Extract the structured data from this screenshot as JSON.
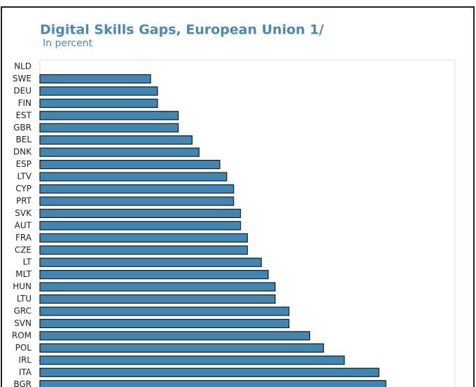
{
  "chart_data": {
    "type": "barh",
    "title": "Digital Skills Gaps, European Union 1/",
    "subtitle": "In percent",
    "categories": [
      "NLD",
      "SWE",
      "DEU",
      "FIN",
      "EST",
      "GBR",
      "BEL",
      "DNK",
      "ESP",
      "LTV",
      "CYP",
      "PRT",
      "SVK",
      "AUT",
      "FRA",
      "CZE",
      "LT",
      "MLT",
      "HUN",
      "LTU",
      "GRC",
      "SVN",
      "ROM",
      "POL",
      "IRL",
      "ITA",
      "BGR"
    ],
    "values": [
      0,
      16,
      17,
      17,
      20,
      20,
      22,
      23,
      26,
      27,
      28,
      28,
      29,
      29,
      30,
      30,
      32,
      33,
      34,
      34,
      36,
      36,
      39,
      41,
      44,
      49,
      50
    ],
    "color": "#3f86b2",
    "xlim": [
      0,
      60
    ]
  }
}
